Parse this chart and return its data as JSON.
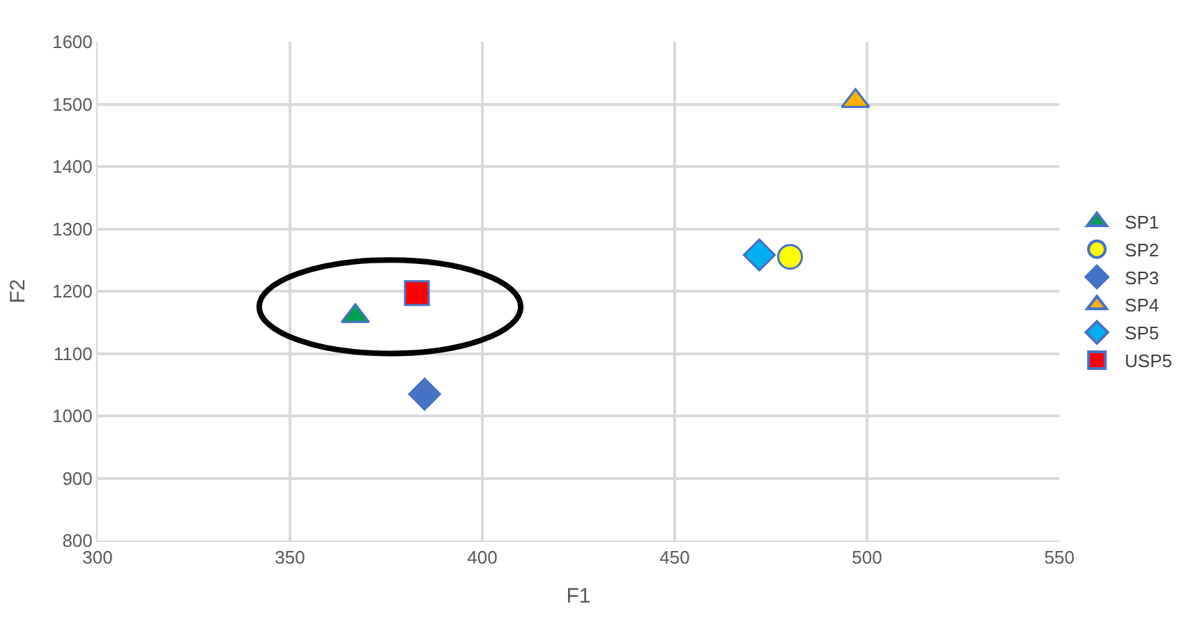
{
  "chart_data": {
    "type": "scatter",
    "xlabel": "F1",
    "ylabel": "F2",
    "xlim": [
      300,
      550
    ],
    "xticks": [
      300,
      350,
      400,
      450,
      500,
      550
    ],
    "ylim": [
      800,
      1600
    ],
    "yticks": [
      800,
      900,
      1000,
      1100,
      1200,
      1300,
      1400,
      1500,
      1600
    ],
    "grid": true,
    "legend": "right",
    "series": [
      {
        "name": "SP1",
        "color": "#00a050",
        "marker": "triangle",
        "x": [
          367
        ],
        "values": [
          1160
        ]
      },
      {
        "name": "SP2",
        "color": "#ffff00",
        "marker": "circle",
        "x": [
          480
        ],
        "values": [
          1255
        ]
      },
      {
        "name": "SP3",
        "color": "#4472c4",
        "marker": "diamond",
        "x": [
          385
        ],
        "values": [
          1035
        ]
      },
      {
        "name": "SP4",
        "color": "#ffb000",
        "marker": "triangle",
        "x": [
          497
        ],
        "values": [
          1505
        ]
      },
      {
        "name": "SP5",
        "color": "#00b0f0",
        "marker": "diamond",
        "x": [
          472
        ],
        "values": [
          1258
        ]
      },
      {
        "name": "USP5",
        "color": "#ff0000",
        "marker": "square",
        "x": [
          383
        ],
        "values": [
          1197
        ]
      }
    ]
  }
}
